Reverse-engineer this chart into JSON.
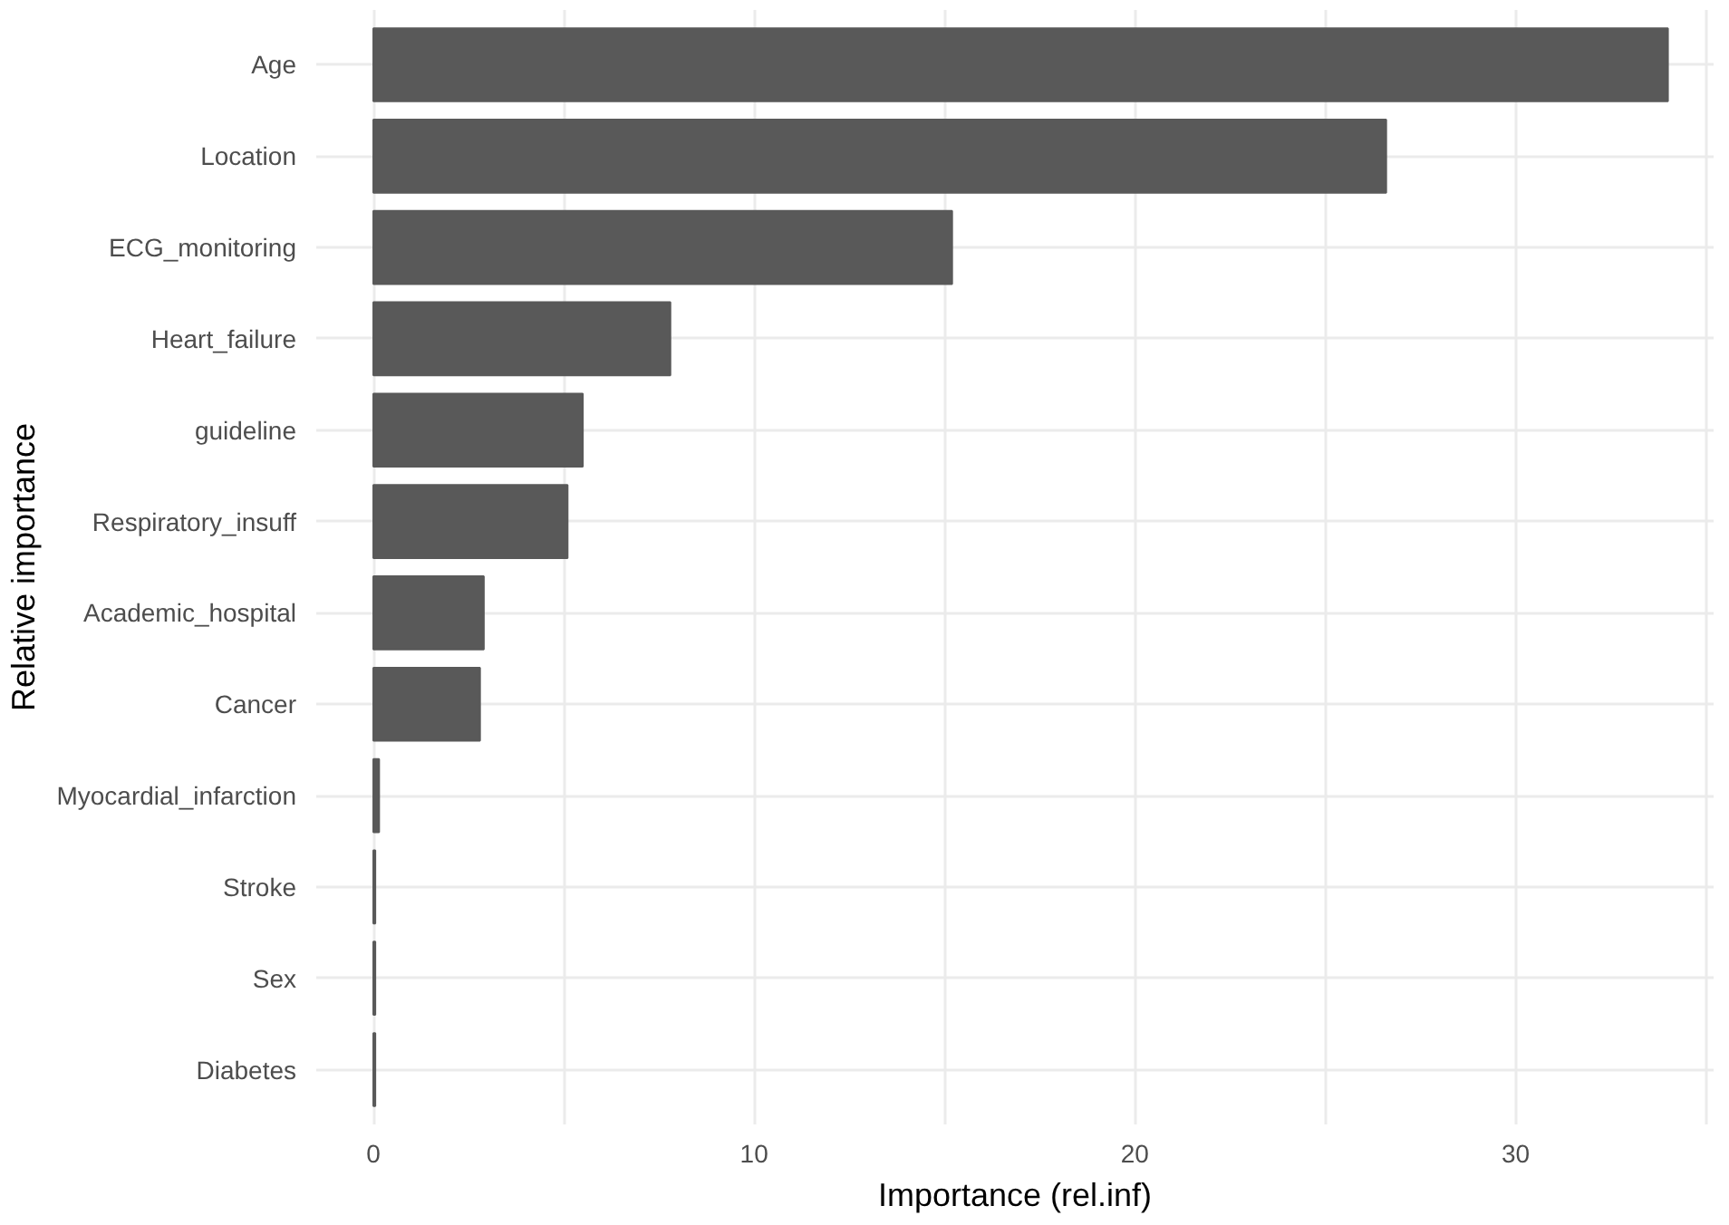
{
  "chart_data": {
    "type": "bar",
    "orientation": "horizontal",
    "xlabel": "Importance (rel.inf)",
    "ylabel": "Relative importance",
    "categories": [
      "Age",
      "Location",
      "ECG_monitoring",
      "Heart_failure",
      "guideline",
      "Respiratory_insuff",
      "Academic_hospital",
      "Cancer",
      "Myocardial_infarction",
      "Stroke",
      "Sex",
      "Diabetes"
    ],
    "values": [
      34.0,
      26.6,
      15.2,
      7.8,
      5.5,
      5.1,
      2.9,
      2.8,
      0.15,
      0.05,
      0.05,
      0.05
    ],
    "color": "#595959",
    "xlim": [
      -1.5,
      35.2
    ],
    "xticks": [
      0,
      {
        "value": 5,
        "label": null
      },
      10,
      {
        "value": 15,
        "label": null
      },
      20,
      {
        "value": 25,
        "label": null
      },
      30,
      {
        "value": 35,
        "label": null
      }
    ],
    "grid": true
  }
}
